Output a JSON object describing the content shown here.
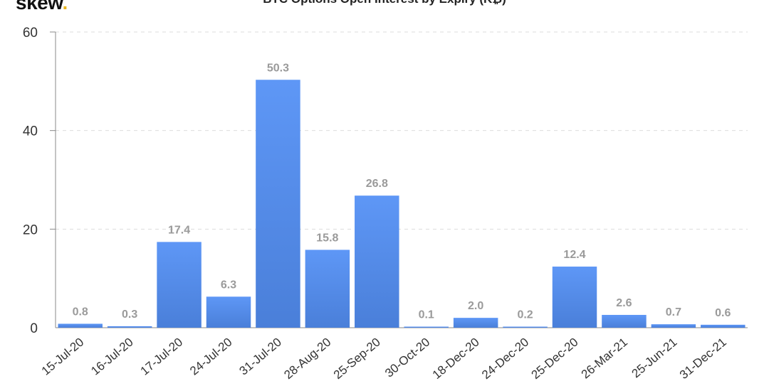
{
  "brand": {
    "name": "skew",
    "dot": "."
  },
  "chart_data": {
    "type": "bar",
    "title": "BTC Options Open Interest by Expiry (K₿)",
    "categories": [
      "15-Jul-20",
      "16-Jul-20",
      "17-Jul-20",
      "24-Jul-20",
      "31-Jul-20",
      "28-Aug-20",
      "25-Sep-20",
      "30-Oct-20",
      "18-Dec-20",
      "24-Dec-20",
      "25-Dec-20",
      "26-Mar-21",
      "25-Jun-21",
      "31-Dec-21"
    ],
    "values": [
      0.8,
      0.3,
      17.4,
      6.3,
      50.3,
      15.8,
      26.8,
      0.1,
      2.0,
      0.2,
      12.4,
      2.6,
      0.7,
      0.6
    ],
    "data_labels": [
      "0.8",
      "0.3",
      "17.4",
      "6.3",
      "50.3",
      "15.8",
      "26.8",
      "0.1",
      "2.0",
      "0.2",
      "12.4",
      "2.6",
      "0.7",
      "0.6"
    ],
    "xlabel": "",
    "ylabel": "",
    "ylim": [
      0,
      60
    ],
    "yticks": [
      0,
      20,
      40,
      60
    ],
    "grid": "horizontal dashed",
    "bar_color_top": "#5e97f6",
    "bar_color_bottom": "#4a7fd9",
    "legend": "none"
  }
}
